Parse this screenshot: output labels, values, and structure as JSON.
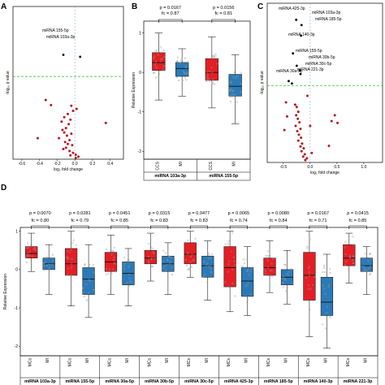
{
  "chart_data": [
    {
      "panel": "A",
      "type": "scatter",
      "xlabel": "log₂ fold change",
      "ylabel": "-log₁₀ p value",
      "xticks": [
        "-0.6",
        "-0.4",
        "-0.2",
        "0.0",
        "0.2",
        "0.4"
      ],
      "xlim": [
        -0.7,
        0.55
      ],
      "ylim": [
        0,
        2.4
      ],
      "threshold_y": 1.3,
      "annotations": [
        "miRNA 155-5p",
        "miRNA 103a-3p"
      ],
      "labeled_points": [
        {
          "x": -0.13,
          "y": 1.64
        },
        {
          "x": 0.06,
          "y": 1.61
        }
      ],
      "points": [
        {
          "x": -0.33,
          "y": 0.93
        },
        {
          "x": -0.27,
          "y": 0.85
        },
        {
          "x": -0.04,
          "y": 0.84
        },
        {
          "x": -0.02,
          "y": 0.76
        },
        {
          "x": 0.02,
          "y": 0.79
        },
        {
          "x": -0.08,
          "y": 0.71
        },
        {
          "x": -0.12,
          "y": 0.66
        },
        {
          "x": -0.05,
          "y": 0.62
        },
        {
          "x": -0.15,
          "y": 0.59
        },
        {
          "x": -0.07,
          "y": 0.55
        },
        {
          "x": -0.1,
          "y": 0.49
        },
        {
          "x": -0.14,
          "y": 0.46
        },
        {
          "x": 0.35,
          "y": 0.57
        },
        {
          "x": -0.12,
          "y": 0.42
        },
        {
          "x": -0.04,
          "y": 0.4
        },
        {
          "x": -0.09,
          "y": 0.37
        },
        {
          "x": -0.18,
          "y": 0.33
        },
        {
          "x": -0.06,
          "y": 0.3
        },
        {
          "x": -0.11,
          "y": 0.27
        },
        {
          "x": -0.42,
          "y": 0.33
        },
        {
          "x": -0.08,
          "y": 0.24
        },
        {
          "x": -0.03,
          "y": 0.22
        },
        {
          "x": -0.1,
          "y": 0.18
        },
        {
          "x": -0.13,
          "y": 0.16
        },
        {
          "x": -0.06,
          "y": 0.13
        },
        {
          "x": -0.02,
          "y": 0.1
        },
        {
          "x": 0.01,
          "y": 0.07
        },
        {
          "x": 0.04,
          "y": 0.04
        },
        {
          "x": 0.01,
          "y": 0.02
        },
        {
          "x": -0.05,
          "y": 0.06
        }
      ]
    },
    {
      "panel": "B",
      "type": "box",
      "ylabel": "Relative Expression",
      "ylim": [
        -2.2,
        1.3
      ],
      "yticks": [
        1,
        0,
        -1,
        -2
      ],
      "category_labels": [
        "CCS",
        "MI"
      ],
      "groups": [
        {
          "name": "miRNA 103a-3p",
          "p": "p = 0.0167",
          "fc": "fc = 0.87"
        },
        {
          "name": "miRNA 155-5p",
          "p": "p = 0.0156",
          "fc": "fc = 0.81"
        }
      ],
      "boxes": [
        {
          "category": "CCS",
          "group": "miRNA 103a-3p",
          "whisker_low": -0.7,
          "q1": 0.05,
          "median": 0.25,
          "q3": 0.5,
          "whisker_high": 1.0
        },
        {
          "category": "MI",
          "group": "miRNA 103a-3p",
          "whisker_low": -0.6,
          "q1": -0.1,
          "median": 0.1,
          "q3": 0.25,
          "whisker_high": 0.6
        },
        {
          "category": "CCS",
          "group": "miRNA 155-5p",
          "whisker_low": -0.9,
          "q1": -0.2,
          "median": 0.0,
          "q3": 0.35,
          "whisker_high": 0.9
        },
        {
          "category": "MI",
          "group": "miRNA 155-5p",
          "whisker_low": -1.3,
          "q1": -0.6,
          "median": -0.35,
          "q3": -0.05,
          "whisker_high": 0.45
        }
      ]
    },
    {
      "panel": "C",
      "type": "scatter",
      "xlabel": "log₂ fold change",
      "ylabel": "-log₁₀ p value",
      "xticks": [
        "-0.5",
        "0.0",
        "0.5",
        "1.0"
      ],
      "xlim": [
        -0.8,
        1.35
      ],
      "ylim": [
        0,
        2.7
      ],
      "threshold_y": 1.3,
      "annotations": [
        "miRNA 425-3p",
        "miRNA 103a-3p",
        "miRNA 185-5p",
        "miRNA 140-3p",
        "miRNA 155-5p",
        "miRNA 30b-5p",
        "miRNA 30c-5p",
        "miRNA 221-3p",
        "miRNA 30a-5p"
      ],
      "labeled_points": [
        {
          "x": -0.26,
          "y": 2.42
        },
        {
          "x": -0.16,
          "y": 2.33
        },
        {
          "x": -0.17,
          "y": 2.15
        },
        {
          "x": -0.32,
          "y": 1.85
        },
        {
          "x": -0.25,
          "y": 1.64
        },
        {
          "x": -0.19,
          "y": 1.56
        },
        {
          "x": -0.18,
          "y": 1.5
        },
        {
          "x": -0.4,
          "y": 1.38
        },
        {
          "x": -0.34,
          "y": 1.34
        }
      ],
      "points": [
        {
          "x": -0.45,
          "y": 1.02
        },
        {
          "x": -0.43,
          "y": 0.78
        },
        {
          "x": -0.48,
          "y": 0.55
        },
        {
          "x": -0.05,
          "y": 1.13
        },
        {
          "x": -0.28,
          "y": 0.98
        },
        {
          "x": -0.25,
          "y": 0.94
        },
        {
          "x": -0.22,
          "y": 0.86
        },
        {
          "x": -0.26,
          "y": 0.8
        },
        {
          "x": -0.23,
          "y": 0.74
        },
        {
          "x": -0.2,
          "y": 0.68
        },
        {
          "x": -0.27,
          "y": 0.62
        },
        {
          "x": -0.18,
          "y": 0.57
        },
        {
          "x": -0.24,
          "y": 0.53
        },
        {
          "x": -0.21,
          "y": 0.47
        },
        {
          "x": -0.17,
          "y": 0.42
        },
        {
          "x": -0.22,
          "y": 0.37
        },
        {
          "x": -0.15,
          "y": 0.32
        },
        {
          "x": -0.18,
          "y": 0.27
        },
        {
          "x": -0.12,
          "y": 0.24
        },
        {
          "x": -0.16,
          "y": 0.19
        },
        {
          "x": -0.1,
          "y": 0.14
        },
        {
          "x": -0.13,
          "y": 0.1
        },
        {
          "x": -0.06,
          "y": 0.07
        },
        {
          "x": -0.09,
          "y": 0.04
        },
        {
          "x": 0.46,
          "y": 0.8
        },
        {
          "x": 0.4,
          "y": 0.7
        },
        {
          "x": 0.51,
          "y": 0.67
        },
        {
          "x": 0.0,
          "y": 0.62
        },
        {
          "x": 0.35,
          "y": 0.28
        },
        {
          "x": 0.03,
          "y": 0.16
        }
      ]
    },
    {
      "panel": "D",
      "type": "box",
      "ylabel": "Relative Expression",
      "ylim": [
        -2.25,
        1.1
      ],
      "yticks": [
        1,
        0,
        -1,
        -2
      ],
      "category_labels": [
        "MCs",
        "MI"
      ],
      "groups": [
        {
          "name": "miRNA 103a-3p",
          "p": "p = 0.0070",
          "fc": "fc = 0.80"
        },
        {
          "name": "miRNA 155-5p",
          "p": "p = 0.0281",
          "fc": "fc = 0.79"
        },
        {
          "name": "miRNA 30a-5p",
          "p": "p = 0.0451",
          "fc": "fc = 0.85"
        },
        {
          "name": "miRNA 30b-5p",
          "p": "p = 0.0315",
          "fc": "fc = 0.83"
        },
        {
          "name": "miRNA 30c-5p",
          "p": "p = 0.0477",
          "fc": "fc = 0.83"
        },
        {
          "name": "miRNA 425-3p",
          "p": "p = 0.0065",
          "fc": "fc = 0.74"
        },
        {
          "name": "miRNA 185-5p",
          "p": "p = 0.0080",
          "fc": "fc = 0.84"
        },
        {
          "name": "miRNA 140-3p",
          "p": "p = 0.0167",
          "fc": "fc = 0.71"
        },
        {
          "name": "miRNA 221-3p",
          "p": "p = 0.0415",
          "fc": "fc = 0.85"
        }
      ],
      "boxes": [
        {
          "category": "MCs",
          "group": "miRNA 103a-3p",
          "whisker_low": -0.05,
          "q1": 0.3,
          "median": 0.42,
          "q3": 0.6,
          "whisker_high": 0.95
        },
        {
          "category": "MI",
          "group": "miRNA 103a-3p",
          "whisker_low": -0.65,
          "q1": 0.0,
          "median": 0.15,
          "q3": 0.3,
          "whisker_high": 0.65
        },
        {
          "category": "MCs",
          "group": "miRNA 155-5p",
          "whisker_low": -0.95,
          "q1": -0.15,
          "median": 0.15,
          "q3": 0.55,
          "whisker_high": 1.0
        },
        {
          "category": "MI",
          "group": "miRNA 155-5p",
          "whisker_low": -1.25,
          "q1": -0.65,
          "median": -0.25,
          "q3": 0.05,
          "whisker_high": 0.65
        },
        {
          "category": "MCs",
          "group": "miRNA 30a-5p",
          "whisker_low": -0.65,
          "q1": -0.05,
          "median": 0.2,
          "q3": 0.45,
          "whisker_high": 0.9
        },
        {
          "category": "MI",
          "group": "miRNA 30a-5p",
          "whisker_low": -0.95,
          "q1": -0.4,
          "median": -0.1,
          "q3": 0.2,
          "whisker_high": 0.55
        },
        {
          "category": "MCs",
          "group": "miRNA 30b-5p",
          "whisker_low": -0.3,
          "q1": 0.15,
          "median": 0.3,
          "q3": 0.5,
          "whisker_high": 0.95
        },
        {
          "category": "MI",
          "group": "miRNA 30b-5p",
          "whisker_low": -0.65,
          "q1": -0.05,
          "median": 0.15,
          "q3": 0.35,
          "whisker_high": 0.7
        },
        {
          "category": "MCs",
          "group": "miRNA 30c-5p",
          "whisker_low": -0.2,
          "q1": 0.15,
          "median": 0.4,
          "q3": 0.7,
          "whisker_high": 1.0
        },
        {
          "category": "MI",
          "group": "miRNA 30c-5p",
          "whisker_low": -0.8,
          "q1": -0.2,
          "median": 0.1,
          "q3": 0.35,
          "whisker_high": 0.75
        },
        {
          "category": "MCs",
          "group": "miRNA 425-3p",
          "whisker_low": -1.1,
          "q1": -0.45,
          "median": 0.05,
          "q3": 0.6,
          "whisker_high": 1.0
        },
        {
          "category": "MI",
          "group": "miRNA 425-3p",
          "whisker_low": -1.2,
          "q1": -0.7,
          "median": -0.3,
          "q3": 0.05,
          "whisker_high": 0.6
        },
        {
          "category": "MCs",
          "group": "miRNA 185-5p",
          "whisker_low": -0.6,
          "q1": -0.15,
          "median": 0.05,
          "q3": 0.3,
          "whisker_high": 0.75
        },
        {
          "category": "MI",
          "group": "miRNA 185-5p",
          "whisker_low": -0.9,
          "q1": -0.4,
          "median": -0.2,
          "q3": 0.0,
          "whisker_high": 0.5
        },
        {
          "category": "MCs",
          "group": "miRNA 140-3p",
          "whisker_low": -1.75,
          "q1": -0.8,
          "median": -0.15,
          "q3": 0.45,
          "whisker_high": 1.0
        },
        {
          "category": "MI",
          "group": "miRNA 140-3p",
          "whisker_low": -2.05,
          "q1": -1.2,
          "median": -0.85,
          "q3": -0.2,
          "whisker_high": 0.4
        },
        {
          "category": "MCs",
          "group": "miRNA 221-3p",
          "whisker_low": -0.35,
          "q1": 0.1,
          "median": 0.3,
          "q3": 0.65,
          "whisker_high": 0.95
        },
        {
          "category": "MI",
          "group": "miRNA 221-3p",
          "whisker_low": -0.65,
          "q1": -0.05,
          "median": 0.1,
          "q3": 0.3,
          "whisker_high": 0.6
        }
      ]
    }
  ],
  "colors": {
    "red": "#e31e24",
    "blue": "#2b7ab8",
    "point_red": "#b3191e",
    "threshold": "#4cc04c",
    "jitter": "#999999"
  }
}
